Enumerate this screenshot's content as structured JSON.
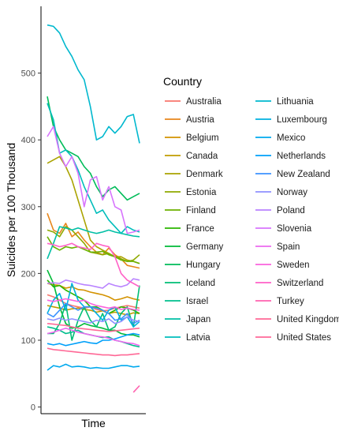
{
  "chart_data": {
    "type": "line",
    "title": "",
    "xlabel": "Time",
    "ylabel": "Suicides per 100 Thousand",
    "ylim": [
      -10,
      600
    ],
    "yticks": [
      0,
      100,
      200,
      300,
      400,
      500
    ],
    "x": [
      0,
      1,
      2,
      3,
      4,
      5,
      6,
      7,
      8,
      9,
      10,
      11,
      12,
      13,
      14,
      15
    ],
    "grid": false,
    "legend": {
      "title": "Country",
      "position": "right",
      "columns": 2
    },
    "series": [
      {
        "name": "Australia",
        "color": "#F8766D",
        "values": [
          168,
          165,
          160,
          155,
          152,
          150,
          148,
          150,
          146,
          144,
          145,
          148,
          150,
          152,
          150,
          148
        ]
      },
      {
        "name": "Austria",
        "color": "#E7861B",
        "values": [
          290,
          265,
          260,
          275,
          255,
          262,
          250,
          240,
          232,
          228,
          238,
          228,
          222,
          212,
          210,
          208
        ]
      },
      {
        "name": "Belgium",
        "color": "#D39200",
        "values": [
          185,
          183,
          182,
          178,
          180,
          176,
          175,
          172,
          170,
          168,
          165,
          160,
          162,
          165,
          162,
          160
        ]
      },
      {
        "name": "Canada",
        "color": "#C09B00",
        "values": [
          152,
          150,
          148,
          145,
          147,
          148,
          146,
          145,
          142,
          144,
          140,
          142,
          140,
          138,
          141,
          140
        ]
      },
      {
        "name": "Denmark",
        "color": "#AAA300",
        "values": [
          365,
          370,
          375,
          360,
          340,
          310,
          280,
          250,
          240,
          235,
          230,
          225,
          225,
          220,
          218,
          215
        ]
      },
      {
        "name": "Estonia",
        "color": "#8FAA00",
        "values": [
          265,
          262,
          255,
          270,
          265,
          255,
          245,
          232,
          230,
          228,
          230,
          225,
          222,
          218,
          220,
          228
        ]
      },
      {
        "name": "Finland",
        "color": "#6BB100",
        "values": [
          255,
          240,
          235,
          240,
          238,
          240,
          236,
          232,
          232,
          233,
          228,
          225,
          220,
          218,
          218,
          215
        ]
      },
      {
        "name": "France",
        "color": "#2CB600",
        "values": [
          190,
          180,
          182,
          175,
          170,
          165,
          160,
          150,
          150,
          145,
          140,
          145,
          150,
          148,
          145,
          140
        ]
      },
      {
        "name": "Germany",
        "color": "#00BA38",
        "values": [
          205,
          185,
          150,
          125,
          118,
          120,
          125,
          122,
          120,
          118,
          115,
          115,
          110,
          108,
          108,
          105
        ]
      },
      {
        "name": "Hungary",
        "color": "#00BC59",
        "values": [
          465,
          420,
          400,
          385,
          380,
          375,
          360,
          350,
          330,
          315,
          325,
          330,
          320,
          310,
          315,
          320
        ]
      },
      {
        "name": "Iceland",
        "color": "#00BE75",
        "values": [
          110,
          110,
          125,
          155,
          100,
          130,
          150,
          130,
          120,
          140,
          115,
          120,
          140,
          150,
          120,
          182
        ]
      },
      {
        "name": "Israel",
        "color": "#00BF8D",
        "values": [
          120,
          118,
          115,
          110,
          112,
          115,
          110,
          108,
          106,
          104,
          105,
          100,
          98,
          95,
          92,
          90
        ]
      },
      {
        "name": "Japan",
        "color": "#00BFA5",
        "values": [
          222,
          245,
          270,
          268,
          265,
          268,
          265,
          262,
          260,
          262,
          265,
          262,
          260,
          258,
          256,
          255
        ]
      },
      {
        "name": "Latvia",
        "color": "#00BDBB",
        "values": [
          455,
          430,
          380,
          385,
          375,
          355,
          330,
          310,
          290,
          295,
          280,
          270,
          260,
          270,
          265,
          262
        ]
      },
      {
        "name": "Lithuania",
        "color": "#00B8CE",
        "values": [
          572,
          570,
          560,
          540,
          525,
          505,
          490,
          450,
          400,
          405,
          420,
          410,
          420,
          435,
          438,
          395
        ]
      },
      {
        "name": "Luxembourg",
        "color": "#00B1E0",
        "values": [
          140,
          160,
          170,
          145,
          185,
          160,
          150,
          150,
          140,
          130,
          145,
          150,
          130,
          135,
          120,
          128
        ]
      },
      {
        "name": "Mexico",
        "color": "#00A9EE",
        "values": [
          55,
          62,
          60,
          64,
          60,
          61,
          60,
          58,
          59,
          58,
          58,
          60,
          62,
          62,
          60,
          61
        ]
      },
      {
        "name": "Netherlands",
        "color": "#00A0FA",
        "values": [
          95,
          93,
          95,
          92,
          94,
          96,
          98,
          96,
          95,
          100,
          100,
          102,
          105,
          108,
          110,
          108
        ]
      },
      {
        "name": "New Zealand",
        "color": "#3C93FF",
        "values": [
          140,
          135,
          145,
          155,
          150,
          145,
          150,
          150,
          148,
          145,
          140,
          130,
          132,
          140,
          125,
          130
        ]
      },
      {
        "name": "Norway",
        "color": "#8F91FF",
        "values": [
          132,
          130,
          133,
          130,
          132,
          130,
          128,
          126,
          130,
          128,
          132,
          125,
          128,
          135,
          130,
          128
        ]
      },
      {
        "name": "Poland",
        "color": "#B983FF",
        "values": [
          185,
          186,
          185,
          190,
          188,
          185,
          183,
          182,
          180,
          178,
          185,
          182,
          180,
          183,
          192,
          190
        ]
      },
      {
        "name": "Slovenia",
        "color": "#D774FD",
        "values": [
          405,
          420,
          380,
          360,
          375,
          350,
          300,
          340,
          345,
          310,
          330,
          300,
          295,
          260,
          262,
          265
        ]
      },
      {
        "name": "Spain",
        "color": "#EC69EF",
        "values": [
          110,
          112,
          115,
          118,
          115,
          112,
          110,
          108,
          106,
          105,
          103,
          100,
          98,
          96,
          95,
          92
        ]
      },
      {
        "name": "Sweden",
        "color": "#F962DD",
        "values": [
          160,
          158,
          160,
          162,
          160,
          158,
          160,
          155,
          152,
          150,
          148,
          150,
          146,
          148,
          146,
          145
        ]
      },
      {
        "name": "Switzerland",
        "color": "#FF61C7",
        "values": [
          245,
          243,
          240,
          242,
          245,
          240,
          238,
          236,
          245,
          242,
          240,
          225,
          200,
          190,
          185,
          180
        ]
      },
      {
        "name": "Turkey",
        "color": "#FF62AF",
        "values": [
          null,
          null,
          null,
          null,
          null,
          null,
          null,
          null,
          null,
          null,
          null,
          null,
          null,
          null,
          22,
          32
        ]
      },
      {
        "name": "United Kingdom",
        "color": "#FF6896",
        "values": [
          88,
          86,
          85,
          84,
          83,
          82,
          81,
          80,
          79,
          78,
          78,
          77,
          78,
          78,
          79,
          80
        ]
      },
      {
        "name": "United States",
        "color": "#FF6A98",
        "values": [
          125,
          124,
          123,
          122,
          120,
          118,
          117,
          116,
          115,
          114,
          113,
          114,
          115,
          116,
          117,
          118
        ]
      }
    ]
  }
}
